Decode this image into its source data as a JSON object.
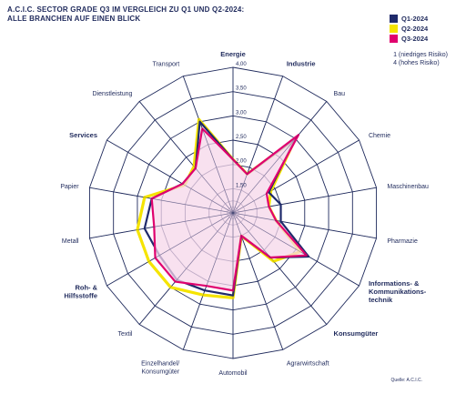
{
  "header": {
    "title_line1": "A.C.I.C. SECTOR GRADE Q3 IM VERGLEICH ZU Q1 UND Q2-2024:",
    "title_line2": "ALLE BRANCHEN AUF EINEN BLICK"
  },
  "legend": {
    "items": [
      {
        "label": "Q1-2024",
        "color": "#1f2a6b"
      },
      {
        "label": "Q2-2024",
        "color": "#f5e400"
      },
      {
        "label": "Q3-2024",
        "color": "#e0006e"
      }
    ]
  },
  "scale_note": {
    "line1": "1 (niedriges Risiko)",
    "line2": "4 (hohes Risiko)"
  },
  "source": "Quelle: A.C.I.C.",
  "colors": {
    "grid": "#1f2a5c",
    "fill": "#f6d7ea"
  },
  "chart_data": {
    "type": "radar",
    "rlim": [
      1,
      4
    ],
    "ticks": [
      "1,50",
      "2,00",
      "2,50",
      "3,00",
      "3,50",
      "4,00"
    ],
    "tick_values": [
      1.5,
      2.0,
      2.5,
      3.0,
      3.5,
      4.0
    ],
    "categories": [
      {
        "label": "Energie",
        "bold": true
      },
      {
        "label": "Industrie",
        "bold": true
      },
      {
        "label": "Bau",
        "bold": false
      },
      {
        "label": "Chemie",
        "bold": false
      },
      {
        "label": "Maschinenbau",
        "bold": false
      },
      {
        "label": "Pharmazie",
        "bold": false
      },
      {
        "label": "Informations- & Kommunikations- technik",
        "bold": true
      },
      {
        "label": "Konsumgüter",
        "bold": true
      },
      {
        "label": "Agrarwirtschaft",
        "bold": false
      },
      {
        "label": "Automobil",
        "bold": false
      },
      {
        "label": "Einzelhandel/ Konsumgüter",
        "bold": false
      },
      {
        "label": "Textil",
        "bold": false
      },
      {
        "label": "Roh- & Hilfsstoffe",
        "bold": true
      },
      {
        "label": "Metall",
        "bold": false
      },
      {
        "label": "Papier",
        "bold": false
      },
      {
        "label": "Services",
        "bold": true
      },
      {
        "label": "Dienstleistung",
        "bold": false
      },
      {
        "label": "Transport",
        "bold": false
      }
    ],
    "series": [
      {
        "name": "Q1-2024",
        "values": [
          2.1,
          1.85,
          3.0,
          1.85,
          2.0,
          2.0,
          2.8,
          2.2,
          1.5,
          2.7,
          2.7,
          2.8,
          2.75,
          2.85,
          2.7,
          2.2,
          2.2,
          3.0
        ]
      },
      {
        "name": "Q2-2024",
        "values": [
          2.1,
          1.85,
          3.0,
          1.9,
          1.75,
          1.9,
          2.6,
          2.3,
          1.5,
          2.75,
          2.8,
          3.0,
          3.0,
          3.0,
          2.85,
          2.15,
          2.25,
          3.05
        ]
      },
      {
        "name": "Q3-2024",
        "values": [
          2.1,
          1.85,
          3.1,
          1.8,
          1.75,
          1.9,
          2.75,
          2.2,
          1.5,
          2.6,
          2.6,
          2.85,
          2.85,
          2.65,
          2.7,
          2.2,
          2.2,
          2.85
        ]
      }
    ]
  }
}
